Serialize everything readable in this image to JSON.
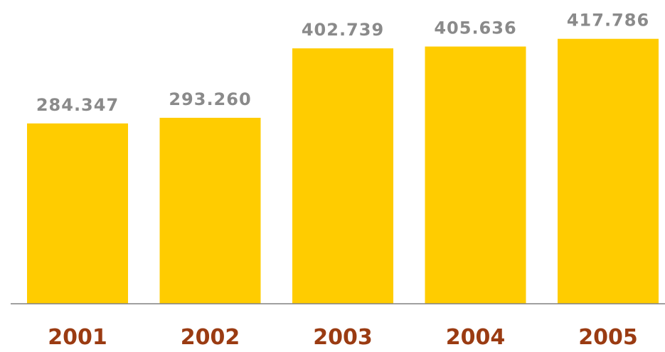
{
  "chart_data": {
    "type": "bar",
    "categories": [
      "2001",
      "2002",
      "2003",
      "2004",
      "2005"
    ],
    "values": [
      284.347,
      293.26,
      402.739,
      405.636,
      417.786
    ],
    "value_labels": [
      "284.347",
      "293.260",
      "402.739",
      "405.636",
      "417.786"
    ],
    "ylim": [
      0,
      450
    ],
    "grid": false,
    "legend": "none",
    "colors": {
      "bar": "#FFCC00",
      "value_label": "#8A8A8A",
      "category_label": "#9A3B12",
      "axis": "#808080"
    }
  }
}
